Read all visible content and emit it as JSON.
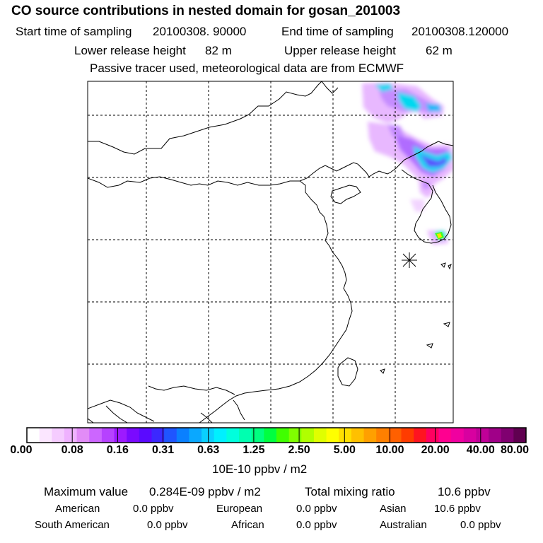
{
  "title": "CO  source contributions in nested domain for gosan_201003",
  "sampling": {
    "start_label": "Start time of sampling",
    "start_value": "20100308. 90000",
    "end_label": "End time of sampling",
    "end_value": "20100308.120000"
  },
  "release": {
    "lower_label": "Lower release height",
    "lower_value": "82 m",
    "upper_label": "Upper release height",
    "upper_value": "62 m"
  },
  "note": "Passive tracer used, meteorological data are from ECMWF",
  "colorbar": {
    "units": "10E-10 ppbv / m2",
    "ticks": [
      "0.00",
      "0.08",
      "0.16",
      "0.31",
      "0.63",
      "1.25",
      "2.50",
      "5.00",
      "10.00",
      "20.00",
      "40.00",
      "80.00"
    ],
    "colors": [
      "#ffffff",
      "#fbe6ff",
      "#f5ccff",
      "#efb2ff",
      "#e28cf7",
      "#cc66ff",
      "#b642ff",
      "#9d1aff",
      "#7a0aff",
      "#5a0aff",
      "#3c28ff",
      "#1f55ff",
      "#0a80ff",
      "#0aa8ff",
      "#0ad0ff",
      "#00f0ff",
      "#00ffdd",
      "#00ffb0",
      "#00ff80",
      "#00ff40",
      "#40ff00",
      "#80ff00",
      "#b0ff00",
      "#e0ff00",
      "#ffff00",
      "#ffe000",
      "#ffc000",
      "#ffa000",
      "#ff8000",
      "#ff6000",
      "#ff3c00",
      "#ff1420",
      "#ff0060",
      "#ff0090",
      "#f000a0",
      "#d800a0",
      "#c00098",
      "#a00088",
      "#800070",
      "#600050"
    ]
  },
  "summary": {
    "max_label": "Maximum value",
    "max_value": "0.284E-09 ppbv / m2",
    "total_label": "Total mixing ratio",
    "total_value": "10.6 ppbv"
  },
  "regions": [
    {
      "name": "American",
      "value": "0.0 ppbv"
    },
    {
      "name": "European",
      "value": "0.0 ppbv"
    },
    {
      "name": "Asian",
      "value": "10.6 ppbv"
    },
    {
      "name": "South American",
      "value": "0.0 ppbv"
    },
    {
      "name": "African",
      "value": "0.0 ppbv"
    },
    {
      "name": "Australian",
      "value": "0.0 ppbv"
    }
  ]
}
